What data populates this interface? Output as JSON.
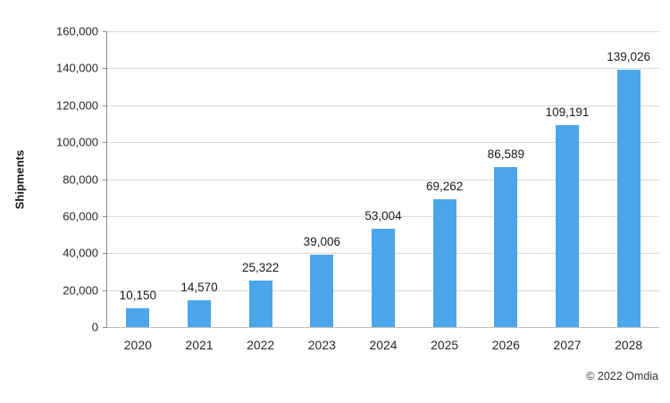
{
  "chart_data": {
    "type": "bar",
    "title": "",
    "xlabel": "",
    "ylabel": "Shipments",
    "categories": [
      "2020",
      "2021",
      "2022",
      "2023",
      "2024",
      "2025",
      "2026",
      "2027",
      "2028"
    ],
    "values": [
      10150,
      14570,
      25322,
      39006,
      53004,
      69262,
      86589,
      109191,
      139026
    ],
    "value_labels": [
      "10,150",
      "14,570",
      "25,322",
      "39,006",
      "53,004",
      "69,262",
      "86,589",
      "109,191",
      "139,026"
    ],
    "ylim": [
      0,
      160000
    ],
    "y_ticks": [
      0,
      20000,
      40000,
      60000,
      80000,
      100000,
      120000,
      140000,
      160000
    ],
    "y_tick_labels": [
      "0",
      "20,000",
      "40,000",
      "60,000",
      "80,000",
      "100,000",
      "120,000",
      "140,000",
      "160,000"
    ],
    "grid": "horizontal",
    "legend": "none",
    "bar_color": "#4BA6EC"
  },
  "colors": {
    "bar": "#4BA6EC",
    "gridline": "#d9d9d9",
    "y_axis": "#8c8c8c",
    "x_axis": "#bfbfbf",
    "label_text": "#262626"
  },
  "footer": {
    "credit": "© 2022 Omdia"
  }
}
